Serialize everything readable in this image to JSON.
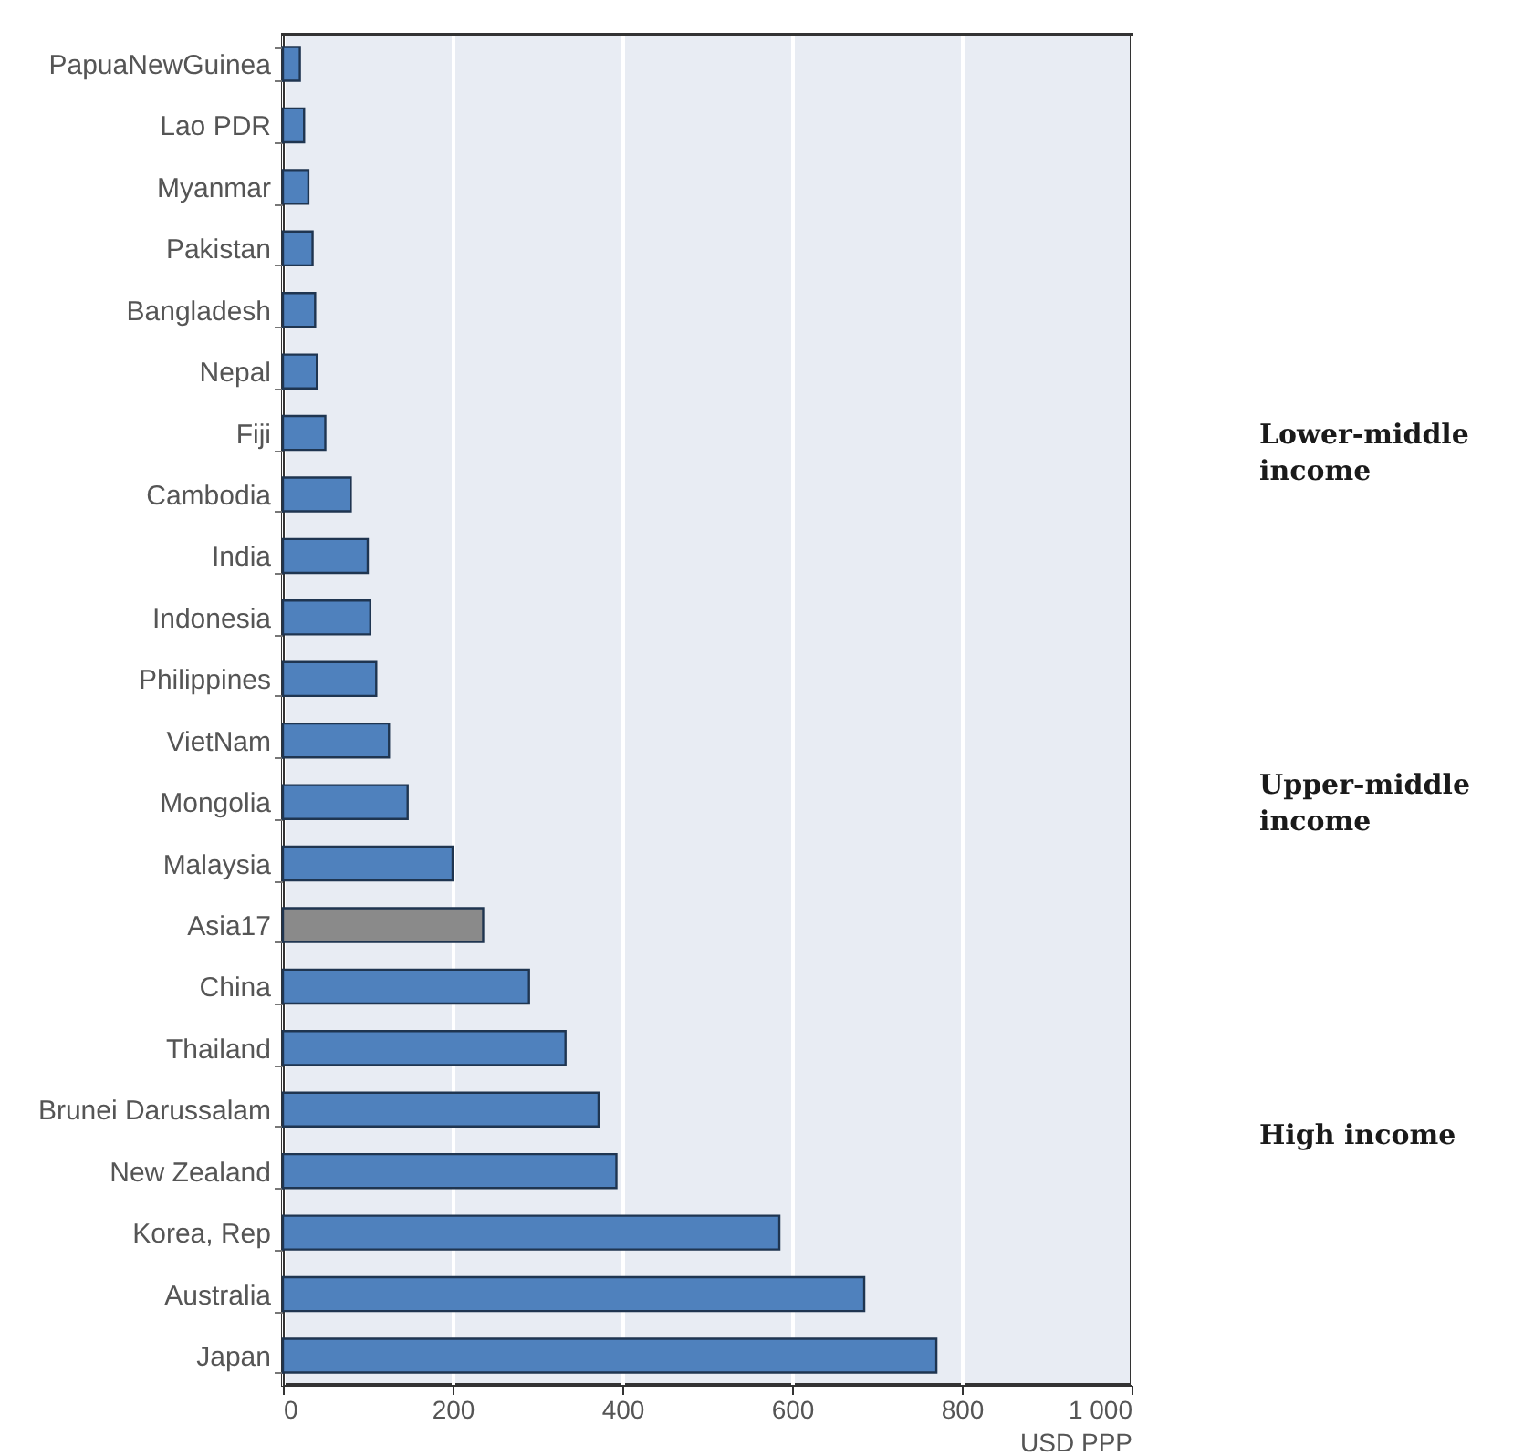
{
  "chart_data": {
    "type": "bar",
    "orientation": "horizontal",
    "xlabel": "USD PPP",
    "categories": [
      "PapuaNewGuinea",
      "Lao PDR",
      "Myanmar",
      "Pakistan",
      "Bangladesh",
      "Nepal",
      "Fiji",
      "Cambodia",
      "India",
      "Indonesia",
      "Philippines",
      "VietNam",
      "Mongolia",
      "Malaysia",
      "Asia17",
      "China",
      "Thailand",
      "Brunei Darussalam",
      "New Zealand",
      "Korea, Rep",
      "Australia",
      "Japan"
    ],
    "values": [
      20,
      25,
      30,
      35,
      38,
      40,
      50,
      80,
      100,
      103,
      110,
      125,
      147,
      200,
      236,
      290,
      333,
      372,
      393,
      585,
      685,
      770
    ],
    "colors": [
      "#4f81bd",
      "#4f81bd",
      "#4f81bd",
      "#4f81bd",
      "#4f81bd",
      "#4f81bd",
      "#4f81bd",
      "#4f81bd",
      "#4f81bd",
      "#4f81bd",
      "#4f81bd",
      "#4f81bd",
      "#4f81bd",
      "#4f81bd",
      "#8a8a8a",
      "#4f81bd",
      "#4f81bd",
      "#4f81bd",
      "#4f81bd",
      "#4f81bd",
      "#4f81bd",
      "#4f81bd"
    ],
    "xlim": [
      0,
      1000
    ],
    "xticks": [
      0,
      200,
      400,
      600,
      800,
      {
        "value": 1000,
        "label": "1 000"
      }
    ],
    "grid": "x",
    "annotations": [
      "Lower-middle income",
      "Upper-middle income",
      "High income"
    ]
  }
}
